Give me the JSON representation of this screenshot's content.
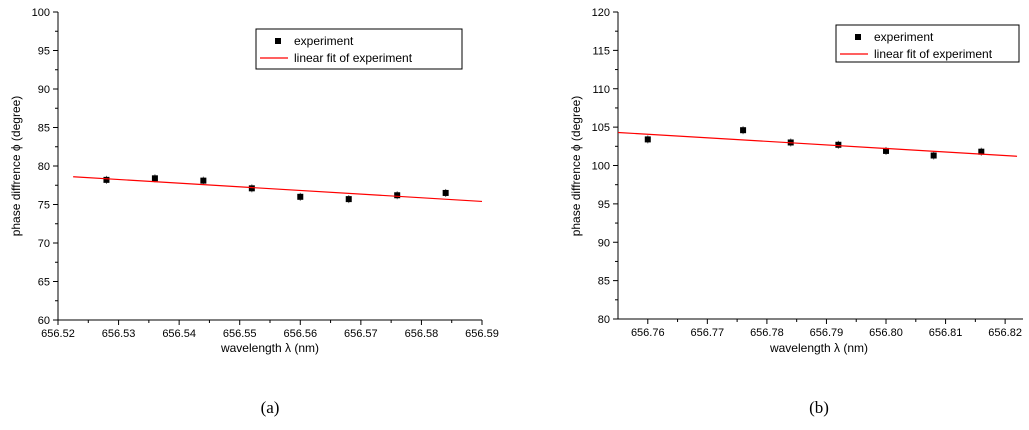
{
  "chart_data": [
    {
      "type": "scatter",
      "panel_label": "(a)",
      "xlabel": "wavelength λ (nm)",
      "ylabel": "phase diffrence ϕ (degree)",
      "xlim": [
        656.52,
        656.59
      ],
      "ylim": [
        60,
        100
      ],
      "xticks": [
        "656.52",
        "656.53",
        "656.54",
        "656.55",
        "656.56",
        "656.57",
        "656.58",
        "656.59"
      ],
      "yticks": [
        "60",
        "65",
        "70",
        "75",
        "80",
        "85",
        "90",
        "95",
        "100"
      ],
      "legend": {
        "placement": "top-right",
        "entries": [
          "experiment",
          "linear fit of experiment"
        ]
      },
      "grid": false,
      "series": [
        {
          "name": "experiment",
          "marker": "square",
          "color": "#000000",
          "x": [
            656.528,
            656.536,
            656.544,
            656.552,
            656.56,
            656.568,
            656.576,
            656.584
          ],
          "y": [
            78.2,
            78.4,
            78.1,
            77.1,
            76.0,
            75.7,
            76.2,
            76.5
          ]
        },
        {
          "name": "linear fit of experiment",
          "type": "line",
          "color": "#ff0000",
          "x": [
            656.5225,
            656.59
          ],
          "y": [
            78.6,
            75.4
          ]
        }
      ]
    },
    {
      "type": "scatter",
      "panel_label": "(b)",
      "xlabel": "wavelength λ (nm)",
      "ylabel": "phase diffrence ϕ (degree)",
      "xlim": [
        656.755,
        656.823
      ],
      "ylim": [
        80,
        120
      ],
      "xticks": [
        "656.76",
        "656.77",
        "656.78",
        "656.79",
        "656.80",
        "656.81",
        "656.82"
      ],
      "yticks": [
        "80",
        "85",
        "90",
        "95",
        "100",
        "105",
        "110",
        "115",
        "120"
      ],
      "legend": {
        "placement": "top-right",
        "entries": [
          "experiment",
          "linear fit of experiment"
        ]
      },
      "grid": false,
      "series": [
        {
          "name": "experiment",
          "marker": "square",
          "color": "#000000",
          "x": [
            656.76,
            656.776,
            656.784,
            656.792,
            656.8,
            656.808,
            656.816
          ],
          "y": [
            103.4,
            104.6,
            103.0,
            102.7,
            101.9,
            101.3,
            101.8
          ]
        },
        {
          "name": "linear fit of experiment",
          "type": "line",
          "color": "#ff0000",
          "x": [
            656.755,
            656.822
          ],
          "y": [
            104.3,
            101.2
          ]
        }
      ]
    }
  ]
}
